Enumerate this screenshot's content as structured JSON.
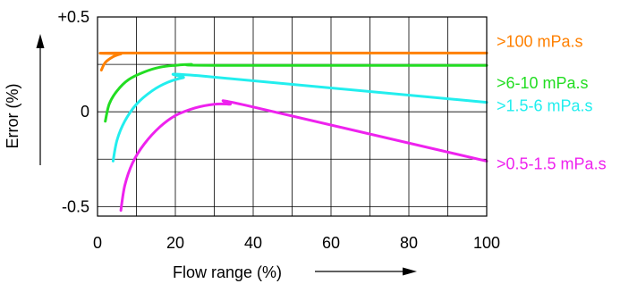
{
  "chart_data": {
    "type": "line",
    "title": "",
    "xlabel": "Flow range (%)",
    "ylabel": "Error (%)",
    "xlim": [
      0,
      100
    ],
    "ylim": [
      -0.55,
      0.5
    ],
    "x_ticks": [
      {
        "value": 0,
        "label": "0"
      },
      {
        "value": 20,
        "label": "20"
      },
      {
        "value": 40,
        "label": "40"
      },
      {
        "value": 60,
        "label": "60"
      },
      {
        "value": 80,
        "label": "80"
      },
      {
        "value": 100,
        "label": "100"
      }
    ],
    "y_ticks": [
      {
        "value": 0.5,
        "label": "+0.5"
      },
      {
        "value": 0,
        "label": "0"
      },
      {
        "value": -0.5,
        "label": "-0.5"
      }
    ],
    "grid": true,
    "series": [
      {
        "name": ">100 mPa.s",
        "color": "#ff8000",
        "x": [
          1,
          2,
          4,
          6,
          8,
          100
        ],
        "y": [
          0.22,
          0.26,
          0.29,
          0.305,
          0.31,
          0.31
        ]
      },
      {
        "name": ">6-10 mPa.s",
        "color": "#22dd22",
        "x": [
          2,
          3,
          5,
          8,
          12,
          16,
          20,
          24,
          30,
          100
        ],
        "y": [
          -0.05,
          0.04,
          0.11,
          0.17,
          0.21,
          0.235,
          0.245,
          0.25,
          0.245,
          0.245
        ]
      },
      {
        "name": ">1.5-6 mPa.s",
        "color": "#22eeee",
        "x": [
          4,
          5,
          7,
          10,
          14,
          18,
          22,
          26,
          100
        ],
        "y": [
          -0.26,
          -0.15,
          -0.05,
          0.04,
          0.11,
          0.155,
          0.18,
          0.19,
          0.05
        ]
      },
      {
        "name": ">0.5-1.5 mPa.s",
        "color": "#ee22ee",
        "x": [
          6,
          7,
          9,
          12,
          16,
          20,
          25,
          30,
          34,
          38,
          100
        ],
        "y": [
          -0.52,
          -0.39,
          -0.27,
          -0.17,
          -0.08,
          -0.02,
          0.02,
          0.04,
          0.04,
          0.035,
          -0.26
        ]
      }
    ]
  }
}
